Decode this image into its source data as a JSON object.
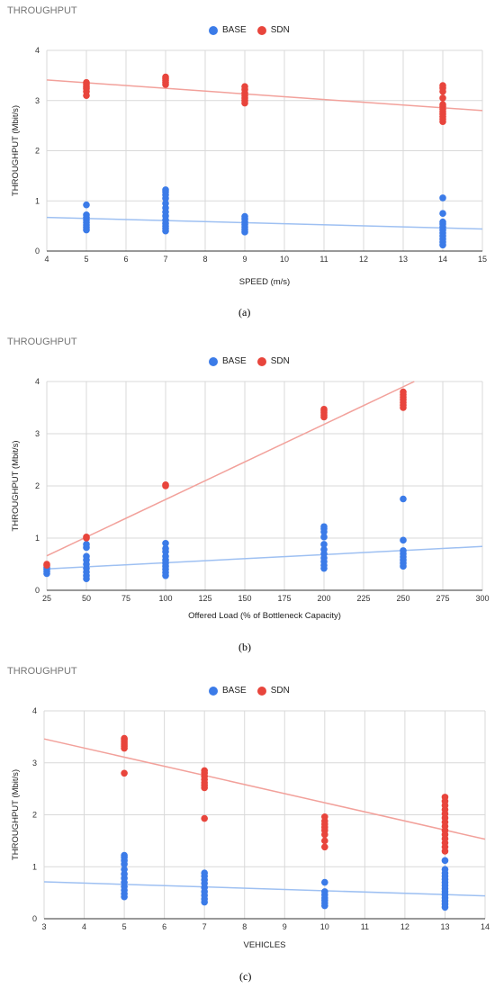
{
  "colors": {
    "base": "#3b7be8",
    "sdn": "#e8453c",
    "base_line": "#9ec0f2",
    "sdn_line": "#f2a19b",
    "grid": "#d9d9d9"
  },
  "chart_data": [
    {
      "type": "scatter",
      "panel": "a",
      "title": "THROUGHPUT",
      "caption": "(a)",
      "legend": [
        "BASE",
        "SDN"
      ],
      "legend_position": "top-center",
      "xlabel": "SPEED (m/s)",
      "ylabel": "THROUGHPUT (Mbit/s)",
      "xlim": [
        4,
        15
      ],
      "ylim": [
        0,
        4
      ],
      "xticks": [
        4,
        5,
        6,
        7,
        8,
        9,
        10,
        11,
        12,
        13,
        14,
        15
      ],
      "yticks": [
        0,
        1,
        2,
        3,
        4
      ],
      "grid": true,
      "series": [
        {
          "name": "BASE",
          "points": [
            [
              5,
              0.42
            ],
            [
              5,
              0.47
            ],
            [
              5,
              0.52
            ],
            [
              5,
              0.57
            ],
            [
              5,
              0.62
            ],
            [
              5,
              0.67
            ],
            [
              5,
              0.72
            ],
            [
              5,
              0.92
            ],
            [
              7,
              0.4
            ],
            [
              7,
              0.45
            ],
            [
              7,
              0.5
            ],
            [
              7,
              0.55
            ],
            [
              7,
              0.62
            ],
            [
              7,
              0.7
            ],
            [
              7,
              0.78
            ],
            [
              7,
              0.86
            ],
            [
              7,
              0.95
            ],
            [
              7,
              1.05
            ],
            [
              7,
              1.12
            ],
            [
              7,
              1.18
            ],
            [
              7,
              1.22
            ],
            [
              9,
              0.38
            ],
            [
              9,
              0.43
            ],
            [
              9,
              0.48
            ],
            [
              9,
              0.53
            ],
            [
              9,
              0.58
            ],
            [
              9,
              0.64
            ],
            [
              9,
              0.69
            ],
            [
              14,
              0.12
            ],
            [
              14,
              0.18
            ],
            [
              14,
              0.24
            ],
            [
              14,
              0.3
            ],
            [
              14,
              0.36
            ],
            [
              14,
              0.42
            ],
            [
              14,
              0.48
            ],
            [
              14,
              0.54
            ],
            [
              14,
              0.58
            ],
            [
              14,
              0.75
            ],
            [
              14,
              1.06
            ]
          ],
          "trend": [
            [
              4,
              0.67
            ],
            [
              15,
              0.44
            ]
          ]
        },
        {
          "name": "SDN",
          "points": [
            [
              5,
              3.1
            ],
            [
              5,
              3.18
            ],
            [
              5,
              3.24
            ],
            [
              5,
              3.28
            ],
            [
              5,
              3.32
            ],
            [
              5,
              3.36
            ],
            [
              7,
              3.32
            ],
            [
              7,
              3.36
            ],
            [
              7,
              3.4
            ],
            [
              7,
              3.44
            ],
            [
              7,
              3.47
            ],
            [
              9,
              2.95
            ],
            [
              9,
              3.0
            ],
            [
              9,
              3.05
            ],
            [
              9,
              3.1
            ],
            [
              9,
              3.15
            ],
            [
              9,
              3.22
            ],
            [
              9,
              3.28
            ],
            [
              14,
              2.58
            ],
            [
              14,
              2.63
            ],
            [
              14,
              2.68
            ],
            [
              14,
              2.73
            ],
            [
              14,
              2.78
            ],
            [
              14,
              2.83
            ],
            [
              14,
              2.88
            ],
            [
              14,
              2.92
            ],
            [
              14,
              3.05
            ],
            [
              14,
              3.18
            ],
            [
              14,
              3.25
            ],
            [
              14,
              3.3
            ]
          ],
          "trend": [
            [
              4,
              3.41
            ],
            [
              15,
              2.8
            ]
          ]
        }
      ]
    },
    {
      "type": "scatter",
      "panel": "b",
      "title": "THROUGHPUT",
      "caption": "(b)",
      "legend": [
        "BASE",
        "SDN"
      ],
      "legend_position": "top-center",
      "xlabel": "Offered Load (% of Bottleneck Capacity)",
      "ylabel": "THROUGHPUT (Mbit/s)",
      "xlim": [
        25,
        300
      ],
      "ylim": [
        0,
        4
      ],
      "xticks": [
        25,
        50,
        75,
        100,
        125,
        150,
        175,
        200,
        225,
        250,
        275,
        300
      ],
      "yticks": [
        0,
        1,
        2,
        3,
        4
      ],
      "grid": true,
      "series": [
        {
          "name": "BASE",
          "points": [
            [
              25,
              0.32
            ],
            [
              25,
              0.36
            ],
            [
              25,
              0.4
            ],
            [
              25,
              0.44
            ],
            [
              50,
              0.22
            ],
            [
              50,
              0.28
            ],
            [
              50,
              0.35
            ],
            [
              50,
              0.42
            ],
            [
              50,
              0.5
            ],
            [
              50,
              0.58
            ],
            [
              50,
              0.65
            ],
            [
              50,
              0.82
            ],
            [
              50,
              0.88
            ],
            [
              100,
              0.28
            ],
            [
              100,
              0.34
            ],
            [
              100,
              0.4
            ],
            [
              100,
              0.46
            ],
            [
              100,
              0.52
            ],
            [
              100,
              0.58
            ],
            [
              100,
              0.65
            ],
            [
              100,
              0.74
            ],
            [
              100,
              0.8
            ],
            [
              100,
              0.9
            ],
            [
              200,
              0.42
            ],
            [
              200,
              0.48
            ],
            [
              200,
              0.55
            ],
            [
              200,
              0.62
            ],
            [
              200,
              0.7
            ],
            [
              200,
              0.78
            ],
            [
              200,
              0.88
            ],
            [
              200,
              1.02
            ],
            [
              200,
              1.12
            ],
            [
              200,
              1.18
            ],
            [
              200,
              1.22
            ],
            [
              250,
              0.46
            ],
            [
              250,
              0.52
            ],
            [
              250,
              0.58
            ],
            [
              250,
              0.64
            ],
            [
              250,
              0.7
            ],
            [
              250,
              0.76
            ],
            [
              250,
              0.96
            ],
            [
              250,
              1.75
            ]
          ],
          "trend": [
            [
              25,
              0.41
            ],
            [
              300,
              0.84
            ]
          ]
        },
        {
          "name": "SDN",
          "points": [
            [
              25,
              0.48
            ],
            [
              25,
              0.5
            ],
            [
              50,
              1.0
            ],
            [
              50,
              1.02
            ],
            [
              100,
              2.0
            ],
            [
              100,
              2.02
            ],
            [
              200,
              3.32
            ],
            [
              200,
              3.36
            ],
            [
              200,
              3.4
            ],
            [
              200,
              3.44
            ],
            [
              200,
              3.47
            ],
            [
              250,
              3.5
            ],
            [
              250,
              3.55
            ],
            [
              250,
              3.6
            ],
            [
              250,
              3.65
            ],
            [
              250,
              3.7
            ],
            [
              250,
              3.75
            ],
            [
              250,
              3.8
            ]
          ],
          "trend": [
            [
              25,
              0.66
            ],
            [
              257,
              4.0
            ]
          ]
        }
      ]
    },
    {
      "type": "scatter",
      "panel": "c",
      "title": "THROUGHPUT",
      "caption": "(c)",
      "legend": [
        "BASE",
        "SDN"
      ],
      "legend_position": "top-center",
      "xlabel": "VEHICLES",
      "ylabel": "THROUGHPUT (Mbit/s)",
      "xlim": [
        3,
        14
      ],
      "ylim": [
        0,
        4
      ],
      "xticks": [
        3,
        4,
        5,
        6,
        7,
        8,
        9,
        10,
        11,
        12,
        13,
        14
      ],
      "yticks": [
        0,
        1,
        2,
        3,
        4
      ],
      "grid": true,
      "series": [
        {
          "name": "BASE",
          "points": [
            [
              5,
              0.42
            ],
            [
              5,
              0.48
            ],
            [
              5,
              0.55
            ],
            [
              5,
              0.62
            ],
            [
              5,
              0.7
            ],
            [
              5,
              0.78
            ],
            [
              5,
              0.86
            ],
            [
              5,
              0.95
            ],
            [
              5,
              1.05
            ],
            [
              5,
              1.12
            ],
            [
              5,
              1.18
            ],
            [
              5,
              1.22
            ],
            [
              7,
              0.32
            ],
            [
              7,
              0.38
            ],
            [
              7,
              0.45
            ],
            [
              7,
              0.52
            ],
            [
              7,
              0.6
            ],
            [
              7,
              0.68
            ],
            [
              7,
              0.75
            ],
            [
              7,
              0.82
            ],
            [
              7,
              0.88
            ],
            [
              10,
              0.25
            ],
            [
              10,
              0.3
            ],
            [
              10,
              0.35
            ],
            [
              10,
              0.4
            ],
            [
              10,
              0.46
            ],
            [
              10,
              0.52
            ],
            [
              10,
              0.7
            ],
            [
              13,
              0.22
            ],
            [
              13,
              0.28
            ],
            [
              13,
              0.34
            ],
            [
              13,
              0.4
            ],
            [
              13,
              0.46
            ],
            [
              13,
              0.52
            ],
            [
              13,
              0.58
            ],
            [
              13,
              0.64
            ],
            [
              13,
              0.7
            ],
            [
              13,
              0.76
            ],
            [
              13,
              0.82
            ],
            [
              13,
              0.88
            ],
            [
              13,
              0.95
            ],
            [
              13,
              1.12
            ]
          ],
          "trend": [
            [
              3,
              0.71
            ],
            [
              14,
              0.44
            ]
          ]
        },
        {
          "name": "SDN",
          "points": [
            [
              5,
              2.8
            ],
            [
              5,
              3.28
            ],
            [
              5,
              3.32
            ],
            [
              5,
              3.36
            ],
            [
              5,
              3.4
            ],
            [
              5,
              3.44
            ],
            [
              5,
              3.47
            ],
            [
              7,
              1.93
            ],
            [
              7,
              2.52
            ],
            [
              7,
              2.57
            ],
            [
              7,
              2.62
            ],
            [
              7,
              2.68
            ],
            [
              7,
              2.74
            ],
            [
              7,
              2.8
            ],
            [
              7,
              2.85
            ],
            [
              10,
              1.38
            ],
            [
              10,
              1.5
            ],
            [
              10,
              1.62
            ],
            [
              10,
              1.7
            ],
            [
              10,
              1.76
            ],
            [
              10,
              1.82
            ],
            [
              10,
              1.88
            ],
            [
              10,
              1.96
            ],
            [
              13,
              1.3
            ],
            [
              13,
              1.38
            ],
            [
              13,
              1.46
            ],
            [
              13,
              1.54
            ],
            [
              13,
              1.62
            ],
            [
              13,
              1.7
            ],
            [
              13,
              1.78
            ],
            [
              13,
              1.86
            ],
            [
              13,
              1.94
            ],
            [
              13,
              2.02
            ],
            [
              13,
              2.1
            ],
            [
              13,
              2.18
            ],
            [
              13,
              2.26
            ],
            [
              13,
              2.34
            ]
          ],
          "trend": [
            [
              3,
              3.46
            ],
            [
              14,
              1.53
            ]
          ]
        }
      ]
    }
  ]
}
